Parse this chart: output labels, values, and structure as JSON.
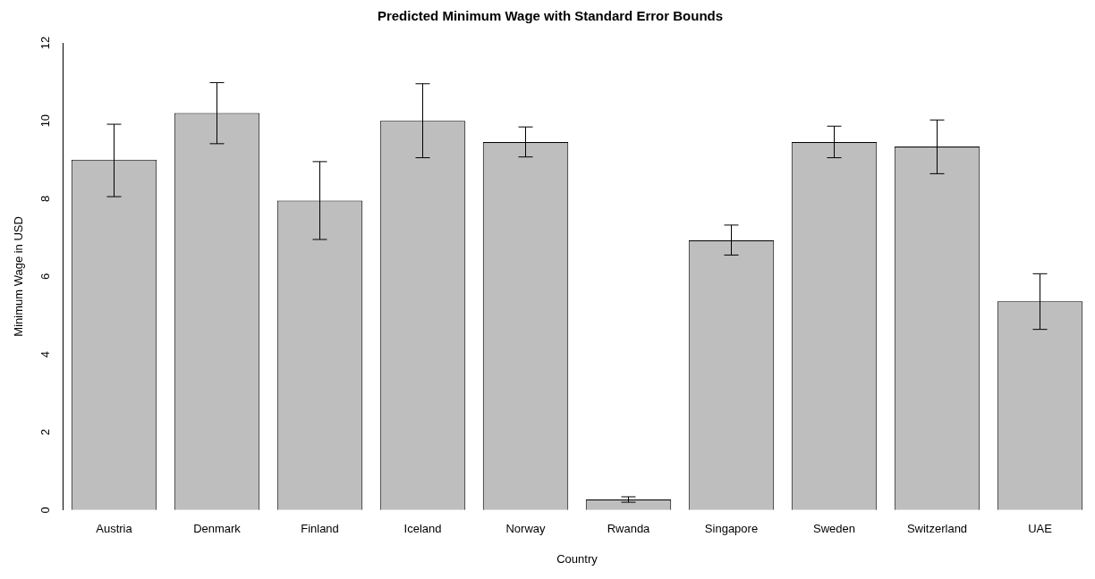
{
  "chart_data": {
    "type": "bar",
    "title": "Predicted Minimum Wage with Standard Error Bounds",
    "xlabel": "Country",
    "ylabel": "Minimum Wage in USD",
    "categories": [
      "Austria",
      "Denmark",
      "Finland",
      "Iceland",
      "Norway",
      "Rwanda",
      "Singapore",
      "Sweden",
      "Switzerland",
      "UAE"
    ],
    "values": [
      9.0,
      10.2,
      7.95,
      10.0,
      9.45,
      0.27,
      6.93,
      9.45,
      9.34,
      5.36
    ],
    "errors": [
      [
        8.05,
        9.91
      ],
      [
        9.41,
        10.98
      ],
      [
        6.95,
        8.95
      ],
      [
        9.05,
        10.95
      ],
      [
        9.07,
        9.84
      ],
      [
        0.2,
        0.34
      ],
      [
        6.55,
        7.32
      ],
      [
        9.05,
        9.86
      ],
      [
        8.64,
        10.02
      ],
      [
        4.64,
        6.07
      ]
    ],
    "color": "#bebebe",
    "ylim": [
      0,
      12
    ],
    "yticks": [
      0,
      2,
      4,
      6,
      8,
      10,
      12
    ],
    "grid": false,
    "legend": false
  }
}
